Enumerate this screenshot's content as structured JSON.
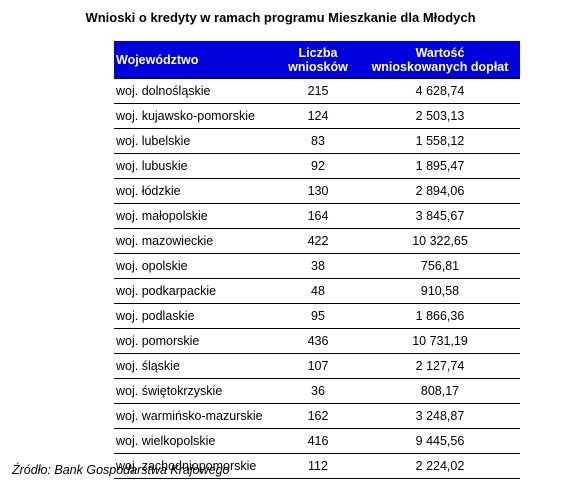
{
  "title": "Wnioski o kredyty w ramach programu Mieszkanie dla Młodych",
  "table": {
    "headers": {
      "region": "Województwo",
      "count_line1": "Liczba",
      "count_line2": "wniosków",
      "value_line1": "Wartość",
      "value_line2": "wnioskowanych dopłat"
    },
    "rows": [
      {
        "region": "woj. dolnośląskie",
        "count": "215",
        "value": "4 628,74"
      },
      {
        "region": "woj. kujawsko-pomorskie",
        "count": "124",
        "value": "2 503,13"
      },
      {
        "region": "woj. lubelskie",
        "count": "83",
        "value": "1 558,12"
      },
      {
        "region": "woj. lubuskie",
        "count": "92",
        "value": "1 895,47"
      },
      {
        "region": "woj. łódzkie",
        "count": "130",
        "value": "2 894,06"
      },
      {
        "region": "woj. małopolskie",
        "count": "164",
        "value": "3 845,67"
      },
      {
        "region": "woj. mazowieckie",
        "count": "422",
        "value": "10 322,65"
      },
      {
        "region": "woj. opolskie",
        "count": "38",
        "value": "756,81"
      },
      {
        "region": "woj. podkarpackie",
        "count": "48",
        "value": "910,58"
      },
      {
        "region": "woj. podlaskie",
        "count": "95",
        "value": "1 866,36"
      },
      {
        "region": "woj. pomorskie",
        "count": "436",
        "value": "10 731,19"
      },
      {
        "region": "woj. śląskie",
        "count": "107",
        "value": "2 127,74"
      },
      {
        "region": "woj. świętokrzyskie",
        "count": "36",
        "value": "808,17"
      },
      {
        "region": "woj. warmińsko-mazurskie",
        "count": "162",
        "value": "3 248,87"
      },
      {
        "region": "woj. wielkopolskie",
        "count": "416",
        "value": "9 445,56"
      },
      {
        "region": "woj. zachodniopomorskie",
        "count": "112",
        "value": "2 224,02"
      }
    ]
  },
  "source": "Źródło: Bank Gospodarstwa Krajowego",
  "colors": {
    "header_bg": "#0000dd",
    "header_text": "#ffffff"
  }
}
